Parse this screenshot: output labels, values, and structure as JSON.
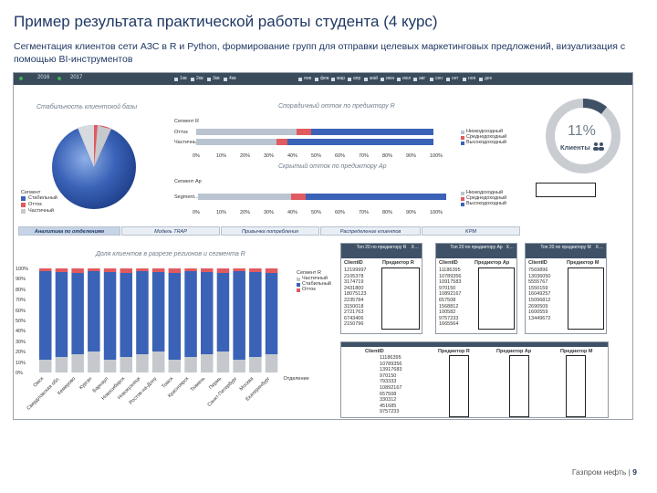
{
  "slide": {
    "title": "Пример результата практической работы студента (4 курс)",
    "subtitle": "Сегментация клиентов сети АЗС в R и Python, формирование групп для отправки целевых маркетинговых предложений, визуализация с помощью BI-инструментов",
    "footer_company": "Газпром нефть",
    "footer_sep": "|",
    "footer_page": "9"
  },
  "topbar": {
    "years": [
      "2016",
      "2017"
    ],
    "quarters": [
      "1кв",
      "2кв",
      "3кв",
      "4кв"
    ],
    "months": [
      "янв",
      "фев",
      "мар",
      "апр",
      "май",
      "июн",
      "июл",
      "авг",
      "сен",
      "окт",
      "ноя",
      "дек"
    ]
  },
  "panels": {
    "pie_title": "Стабильность клиентской базы",
    "pie_legend_title": "Сегмент",
    "pie_legend": [
      "Стабильный",
      "Отток",
      "Частичный"
    ],
    "pct_value": "11%",
    "pct_label": "Клиенты",
    "churn_title": "Спорадичный отток по предиктору R",
    "churn_legend_title": "Сегмент R",
    "churn_rows": [
      "Отток",
      "Частичный"
    ],
    "churn_legend": [
      "Низкодоходный",
      "Среднедоходный",
      "Высокодоходный"
    ],
    "churn_ticks": [
      "0%",
      "10%",
      "20%",
      "30%",
      "40%",
      "50%",
      "60%",
      "70%",
      "80%",
      "90%",
      "100%"
    ],
    "bar2_title": "Скрытый отток по предиктору Ар",
    "bar2_legend_title": "Сегмент Ар",
    "bar2_row": "Segment...",
    "bar2_legend": [
      "Низкодоходный",
      "Среднедоходный",
      "Высокодоходный"
    ],
    "bar2_ticks": [
      "0%",
      "10%",
      "20%",
      "30%",
      "40%",
      "50%",
      "60%",
      "70%",
      "80%",
      "90%",
      "100%"
    ]
  },
  "tabs": [
    "Аналитика по отделениям",
    "Модель TRAP",
    "Привычка потребления",
    "Распределение клиентов",
    "KPM"
  ],
  "stacked": {
    "title": "Доля клиентов в разрезе регионов и сегмента R",
    "legend_title": "Сегмент R",
    "legend": [
      "Частичный",
      "Стабильный",
      "Отток"
    ],
    "yticks": [
      "100%",
      "90%",
      "80%",
      "70%",
      "60%",
      "50%",
      "40%",
      "30%",
      "20%",
      "10%",
      "0%"
    ],
    "categories": [
      "Омск",
      "Свердловская обл.",
      "Кемерово",
      "Курган",
      "Барнаул",
      "Новосибирск",
      "Новокузнецк",
      "Ростов-на-Дону",
      "Томск",
      "Красноярск",
      "Тюмень",
      "Пермь",
      "Санкт-Петербург",
      "Москва",
      "Екатеринбург",
      "Отделение"
    ]
  },
  "tables": [
    {
      "title": "Топ 20 по предиктору R",
      "col1": "ClientID",
      "col2": "Предиктор R",
      "rows": [
        "12199997",
        "2105378",
        "3174719",
        "2431800",
        "18075123",
        "2235784",
        "3150018",
        "2721763",
        "6743406",
        "2150796"
      ]
    },
    {
      "title": "Топ 20 по предиктору Ар",
      "col1": "ClientID",
      "col2": "Предиктор Ар",
      "rows": [
        "11186395",
        "10789356",
        "10917583",
        "970150",
        "10892167",
        "657508",
        "1568812",
        "100582",
        "9757233",
        "1665564"
      ]
    },
    {
      "title": "Топ 20 по предиктору М",
      "col1": "ClientID",
      "col2": "Предиктор М",
      "rows": [
        "7569896",
        "13036050",
        "5555767",
        "1550159",
        "16049257",
        "15096812",
        "2690509",
        "1600559",
        "13449672"
      ]
    }
  ],
  "bottom_table": {
    "col1": "ClientID",
    "col2": "Предиктор R",
    "col3": "Предиктор Ар",
    "col4": "Предиктор М",
    "rows": [
      "11186395",
      "10789356",
      "13917683",
      "970150",
      "793333",
      "10892167",
      "657508",
      "330312",
      "451685",
      "9757233"
    ]
  },
  "colors": {
    "blue": "#3a62b7",
    "red": "#e15a5f",
    "light": "#b9c4d0",
    "grey": "#c5c8cc",
    "navy": "#1f3864"
  }
}
